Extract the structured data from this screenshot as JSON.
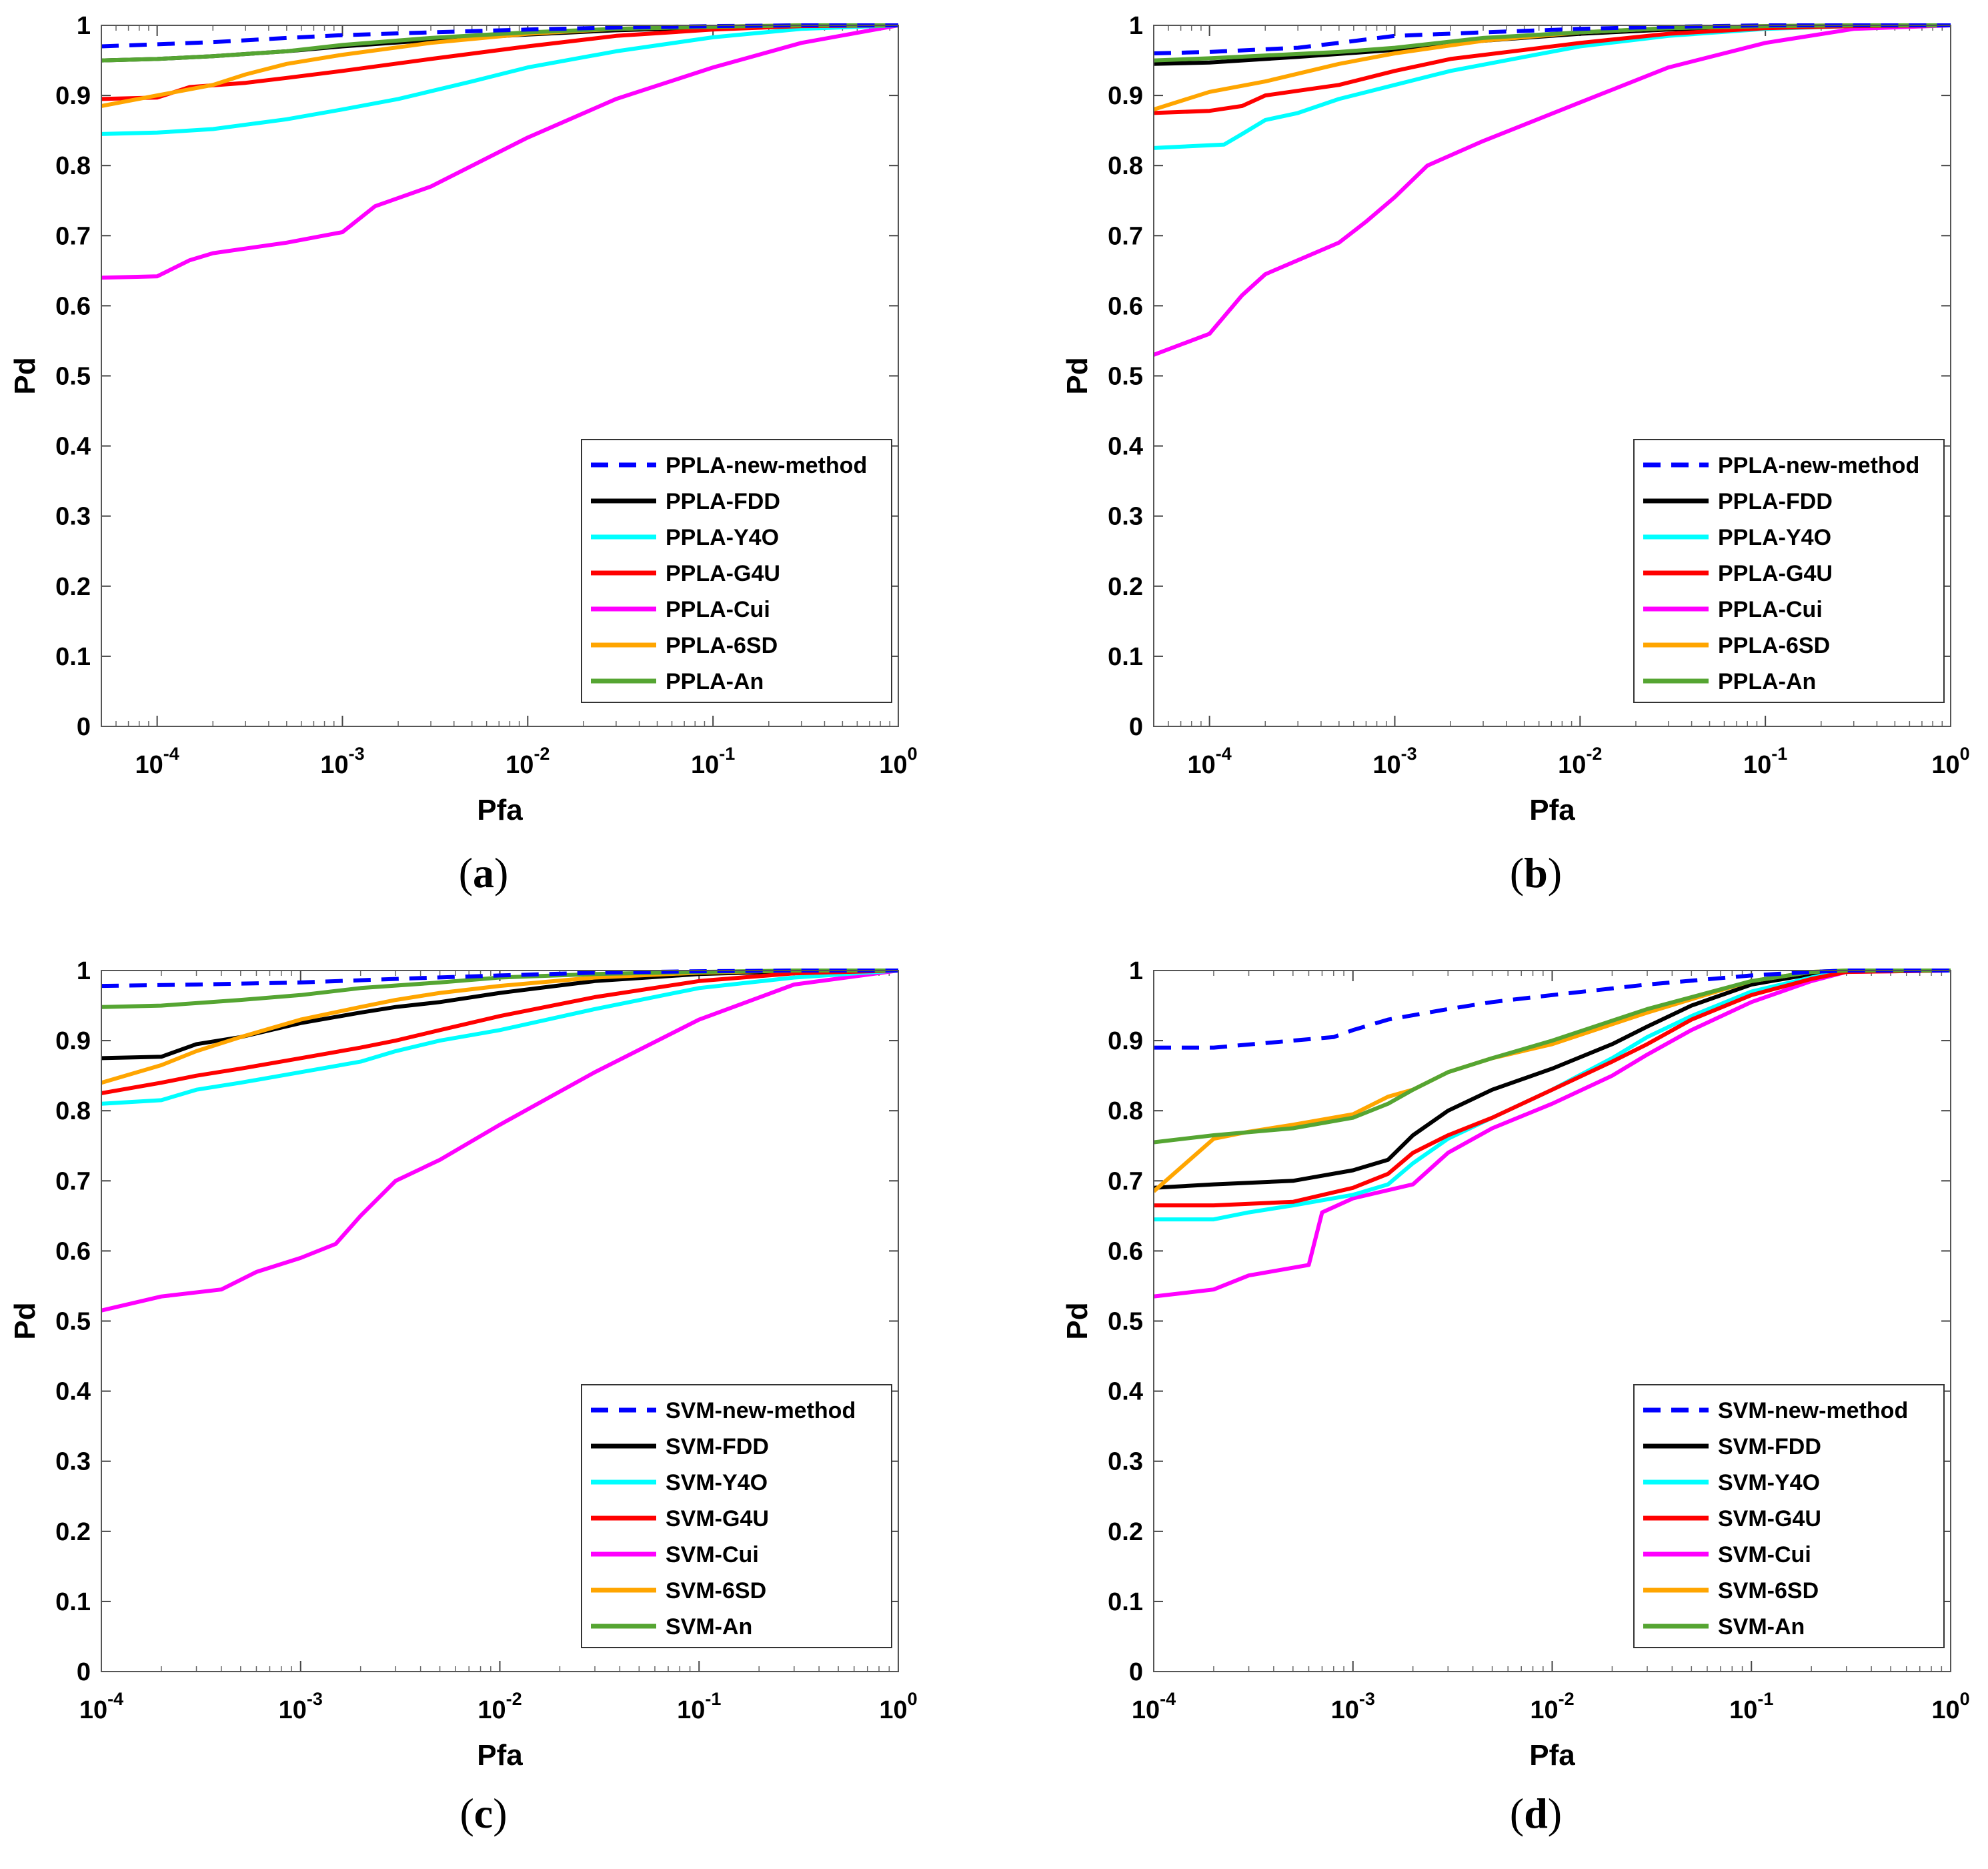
{
  "colors": {
    "new_method": "#0000ff",
    "FDD": "#000000",
    "Y4O": "#00ffff",
    "G4U": "#ff0000",
    "Cui": "#ff00ff",
    "6SD": "#ffa500",
    "An": "#55a532"
  },
  "chart_data": [
    {
      "type": "line",
      "panel": "a",
      "caption_letter": "a",
      "xlabel": "Pfa",
      "ylabel": "Pd",
      "xscale": "log",
      "xlim": [
        5e-05,
        1
      ],
      "ylim": [
        0,
        1
      ],
      "legend_position": "lower-right",
      "series": [
        {
          "name": "PPLA-new-method",
          "color_key": "new_method",
          "dashed": true,
          "x": [
            5e-05,
            0.0001,
            0.0002,
            0.0005,
            0.001,
            0.003,
            0.01,
            0.03,
            0.1,
            0.3,
            1
          ],
          "y": [
            0.97,
            0.973,
            0.976,
            0.982,
            0.986,
            0.99,
            0.994,
            0.997,
            0.999,
            1,
            1
          ]
        },
        {
          "name": "PPLA-FDD",
          "color_key": "FDD",
          "x": [
            5e-05,
            0.0001,
            0.0002,
            0.0005,
            0.001,
            0.003,
            0.01,
            0.03,
            0.1,
            0.3,
            1
          ],
          "y": [
            0.95,
            0.952,
            0.956,
            0.963,
            0.97,
            0.979,
            0.987,
            0.993,
            0.997,
            0.999,
            1
          ]
        },
        {
          "name": "PPLA-Y4O",
          "color_key": "Y4O",
          "x": [
            5e-05,
            0.0001,
            0.0002,
            0.0005,
            0.001,
            0.002,
            0.005,
            0.01,
            0.03,
            0.1,
            0.3,
            1
          ],
          "y": [
            0.845,
            0.847,
            0.852,
            0.866,
            0.88,
            0.895,
            0.92,
            0.94,
            0.963,
            0.983,
            0.995,
            1
          ]
        },
        {
          "name": "PPLA-G4U",
          "color_key": "G4U",
          "x": [
            5e-05,
            0.0001,
            0.00015,
            0.0003,
            0.0005,
            0.001,
            0.003,
            0.01,
            0.03,
            0.1,
            0.3,
            1
          ],
          "y": [
            0.895,
            0.897,
            0.912,
            0.918,
            0.925,
            0.935,
            0.952,
            0.97,
            0.985,
            0.994,
            0.999,
            1
          ]
        },
        {
          "name": "PPLA-Cui",
          "color_key": "Cui",
          "x": [
            5e-05,
            0.0001,
            0.00015,
            0.0002,
            0.0005,
            0.001,
            0.0015,
            0.003,
            0.01,
            0.03,
            0.1,
            0.3,
            1
          ],
          "y": [
            0.64,
            0.642,
            0.665,
            0.675,
            0.69,
            0.705,
            0.742,
            0.77,
            0.84,
            0.895,
            0.94,
            0.975,
            1
          ]
        },
        {
          "name": "PPLA-6SD",
          "color_key": "6SD",
          "x": [
            5e-05,
            0.0001,
            0.0002,
            0.0003,
            0.0005,
            0.001,
            0.003,
            0.01,
            0.03,
            0.1,
            0.3,
            1
          ],
          "y": [
            0.885,
            0.9,
            0.915,
            0.93,
            0.945,
            0.958,
            0.975,
            0.988,
            0.995,
            0.998,
            1,
            1
          ]
        },
        {
          "name": "PPLA-An",
          "color_key": "An",
          "x": [
            5e-05,
            0.0001,
            0.0002,
            0.0005,
            0.001,
            0.003,
            0.01,
            0.03,
            0.1,
            0.3,
            1
          ],
          "y": [
            0.95,
            0.952,
            0.956,
            0.963,
            0.972,
            0.982,
            0.99,
            0.995,
            0.998,
            1,
            1
          ]
        }
      ]
    },
    {
      "type": "line",
      "panel": "b",
      "caption_letter": "b",
      "xlabel": "Pfa",
      "ylabel": "Pd",
      "xscale": "log",
      "xlim": [
        5e-05,
        1
      ],
      "ylim": [
        0,
        1
      ],
      "legend_position": "lower-right",
      "series": [
        {
          "name": "PPLA-new-method",
          "color_key": "new_method",
          "dashed": true,
          "x": [
            5e-05,
            0.0001,
            0.0003,
            0.0005,
            0.001,
            0.003,
            0.01,
            0.03,
            0.1,
            0.3,
            1
          ],
          "y": [
            0.96,
            0.962,
            0.968,
            0.975,
            0.985,
            0.99,
            0.995,
            0.998,
            1,
            1,
            1
          ]
        },
        {
          "name": "PPLA-FDD",
          "color_key": "FDD",
          "x": [
            5e-05,
            0.0001,
            0.0003,
            0.001,
            0.003,
            0.01,
            0.03,
            0.1,
            0.3,
            1
          ],
          "y": [
            0.945,
            0.947,
            0.955,
            0.965,
            0.978,
            0.988,
            0.994,
            0.998,
            1,
            1
          ]
        },
        {
          "name": "PPLA-Y4O",
          "color_key": "Y4O",
          "x": [
            5e-05,
            0.00012,
            0.00015,
            0.0002,
            0.0003,
            0.0005,
            0.001,
            0.002,
            0.005,
            0.01,
            0.03,
            0.1,
            0.3,
            1
          ],
          "y": [
            0.825,
            0.83,
            0.845,
            0.865,
            0.875,
            0.895,
            0.915,
            0.935,
            0.955,
            0.97,
            0.985,
            0.995,
            0.999,
            1
          ]
        },
        {
          "name": "PPLA-G4U",
          "color_key": "G4U",
          "x": [
            5e-05,
            0.0001,
            0.00015,
            0.0002,
            0.0005,
            0.001,
            0.002,
            0.005,
            0.01,
            0.03,
            0.1,
            0.3,
            1
          ],
          "y": [
            0.875,
            0.878,
            0.885,
            0.9,
            0.915,
            0.935,
            0.952,
            0.965,
            0.975,
            0.988,
            0.996,
            0.999,
            1
          ]
        },
        {
          "name": "PPLA-Cui",
          "color_key": "Cui",
          "x": [
            5e-05,
            0.0001,
            0.00015,
            0.0002,
            0.0003,
            0.0005,
            0.0007,
            0.001,
            0.0015,
            0.003,
            0.01,
            0.03,
            0.1,
            0.3,
            1
          ],
          "y": [
            0.53,
            0.56,
            0.615,
            0.645,
            0.665,
            0.69,
            0.72,
            0.755,
            0.8,
            0.835,
            0.89,
            0.94,
            0.975,
            0.995,
            1
          ]
        },
        {
          "name": "PPLA-6SD",
          "color_key": "6SD",
          "x": [
            5e-05,
            0.0001,
            0.0002,
            0.0005,
            0.001,
            0.003,
            0.01,
            0.03,
            0.1,
            0.3,
            1
          ],
          "y": [
            0.88,
            0.905,
            0.92,
            0.945,
            0.96,
            0.978,
            0.99,
            0.996,
            0.999,
            1,
            1
          ]
        },
        {
          "name": "PPLA-An",
          "color_key": "An",
          "x": [
            5e-05,
            0.0001,
            0.0002,
            0.0005,
            0.001,
            0.003,
            0.01,
            0.03,
            0.1,
            0.3,
            1
          ],
          "y": [
            0.95,
            0.953,
            0.957,
            0.962,
            0.968,
            0.982,
            0.99,
            0.996,
            0.999,
            1,
            1
          ]
        }
      ]
    },
    {
      "type": "line",
      "panel": "c",
      "caption_letter": "c",
      "xlabel": "Pfa",
      "ylabel": "Pd",
      "xscale": "log",
      "xlim": [
        0.0001,
        1
      ],
      "ylim": [
        0,
        1
      ],
      "legend_position": "lower-right",
      "series": [
        {
          "name": "SVM-new-method",
          "color_key": "new_method",
          "dashed": true,
          "x": [
            0.0001,
            0.0003,
            0.001,
            0.003,
            0.01,
            0.03,
            0.1,
            0.3,
            1
          ],
          "y": [
            0.978,
            0.98,
            0.983,
            0.988,
            0.993,
            0.997,
            0.999,
            1,
            1
          ]
        },
        {
          "name": "SVM-FDD",
          "color_key": "FDD",
          "x": [
            0.0001,
            0.0002,
            0.0003,
            0.0005,
            0.001,
            0.002,
            0.003,
            0.005,
            0.01,
            0.03,
            0.1,
            0.3,
            1
          ],
          "y": [
            0.875,
            0.877,
            0.895,
            0.905,
            0.925,
            0.94,
            0.948,
            0.955,
            0.968,
            0.985,
            0.995,
            0.999,
            1
          ]
        },
        {
          "name": "SVM-Y4O",
          "color_key": "Y4O",
          "x": [
            0.0001,
            0.0002,
            0.0003,
            0.0005,
            0.001,
            0.002,
            0.003,
            0.005,
            0.01,
            0.03,
            0.1,
            0.3,
            1
          ],
          "y": [
            0.81,
            0.815,
            0.83,
            0.84,
            0.855,
            0.87,
            0.885,
            0.9,
            0.915,
            0.945,
            0.975,
            0.99,
            1
          ]
        },
        {
          "name": "SVM-G4U",
          "color_key": "G4U",
          "x": [
            0.0001,
            0.0002,
            0.0003,
            0.0005,
            0.001,
            0.002,
            0.003,
            0.005,
            0.01,
            0.03,
            0.1,
            0.3,
            1
          ],
          "y": [
            0.825,
            0.84,
            0.85,
            0.86,
            0.875,
            0.89,
            0.9,
            0.915,
            0.935,
            0.962,
            0.985,
            0.996,
            1
          ]
        },
        {
          "name": "SVM-Cui",
          "color_key": "Cui",
          "x": [
            0.0001,
            0.0002,
            0.0004,
            0.0006,
            0.001,
            0.0015,
            0.002,
            0.003,
            0.005,
            0.01,
            0.03,
            0.1,
            0.3,
            1
          ],
          "y": [
            0.515,
            0.535,
            0.545,
            0.57,
            0.59,
            0.61,
            0.65,
            0.7,
            0.73,
            0.78,
            0.855,
            0.93,
            0.98,
            1
          ]
        },
        {
          "name": "SVM-6SD",
          "color_key": "6SD",
          "x": [
            0.0001,
            0.0002,
            0.0003,
            0.0005,
            0.001,
            0.002,
            0.003,
            0.005,
            0.01,
            0.03,
            0.1,
            0.3,
            1
          ],
          "y": [
            0.84,
            0.865,
            0.885,
            0.905,
            0.93,
            0.948,
            0.958,
            0.968,
            0.978,
            0.99,
            0.997,
            1,
            1
          ]
        },
        {
          "name": "SVM-An",
          "color_key": "An",
          "x": [
            0.0001,
            0.0002,
            0.0005,
            0.001,
            0.002,
            0.005,
            0.01,
            0.03,
            0.1,
            0.3,
            1
          ],
          "y": [
            0.948,
            0.95,
            0.958,
            0.965,
            0.975,
            0.983,
            0.99,
            0.995,
            0.998,
            1,
            1
          ]
        }
      ]
    },
    {
      "type": "line",
      "panel": "d",
      "caption_letter": "d",
      "xlabel": "Pfa",
      "ylabel": "Pd",
      "xscale": "log",
      "xlim": [
        0.0001,
        1
      ],
      "ylim": [
        0,
        1
      ],
      "legend_position": "lower-right",
      "series": [
        {
          "name": "SVM-new-method",
          "color_key": "new_method",
          "dashed": true,
          "x": [
            0.0001,
            0.0002,
            0.0005,
            0.0008,
            0.001,
            0.0015,
            0.003,
            0.005,
            0.01,
            0.03,
            0.1,
            0.2,
            0.3,
            1
          ],
          "y": [
            0.89,
            0.89,
            0.9,
            0.905,
            0.915,
            0.93,
            0.945,
            0.955,
            0.965,
            0.98,
            0.993,
            0.998,
            1,
            1
          ]
        },
        {
          "name": "SVM-FDD",
          "color_key": "FDD",
          "x": [
            0.0001,
            0.0002,
            0.0005,
            0.001,
            0.0015,
            0.002,
            0.003,
            0.005,
            0.01,
            0.02,
            0.03,
            0.05,
            0.1,
            0.2,
            0.3,
            1
          ],
          "y": [
            0.69,
            0.695,
            0.7,
            0.715,
            0.73,
            0.765,
            0.8,
            0.83,
            0.86,
            0.895,
            0.92,
            0.95,
            0.98,
            0.995,
            1,
            1
          ]
        },
        {
          "name": "SVM-Y4O",
          "color_key": "Y4O",
          "x": [
            0.0001,
            0.0002,
            0.0003,
            0.0005,
            0.001,
            0.0015,
            0.002,
            0.003,
            0.005,
            0.01,
            0.02,
            0.03,
            0.05,
            0.1,
            0.2,
            0.3,
            1
          ],
          "y": [
            0.645,
            0.645,
            0.655,
            0.665,
            0.68,
            0.695,
            0.725,
            0.76,
            0.79,
            0.83,
            0.875,
            0.905,
            0.935,
            0.97,
            0.99,
            1,
            1
          ]
        },
        {
          "name": "SVM-G4U",
          "color_key": "G4U",
          "x": [
            0.0001,
            0.0002,
            0.0005,
            0.001,
            0.0015,
            0.002,
            0.003,
            0.005,
            0.01,
            0.02,
            0.03,
            0.05,
            0.1,
            0.2,
            0.3,
            1
          ],
          "y": [
            0.665,
            0.665,
            0.67,
            0.69,
            0.71,
            0.74,
            0.765,
            0.79,
            0.83,
            0.87,
            0.895,
            0.93,
            0.965,
            0.988,
            0.998,
            1
          ]
        },
        {
          "name": "SVM-Cui",
          "color_key": "Cui",
          "x": [
            0.0001,
            0.0002,
            0.0003,
            0.0006,
            0.0007,
            0.001,
            0.002,
            0.003,
            0.005,
            0.01,
            0.02,
            0.03,
            0.05,
            0.1,
            0.2,
            0.3,
            1
          ],
          "y": [
            0.535,
            0.545,
            0.565,
            0.58,
            0.655,
            0.675,
            0.695,
            0.74,
            0.775,
            0.81,
            0.85,
            0.88,
            0.915,
            0.955,
            0.985,
            0.998,
            1
          ]
        },
        {
          "name": "SVM-6SD",
          "color_key": "6SD",
          "x": [
            0.0001,
            0.0002,
            0.0003,
            0.0005,
            0.001,
            0.0015,
            0.002,
            0.003,
            0.005,
            0.01,
            0.03,
            0.1,
            0.2,
            0.3,
            1
          ],
          "y": [
            0.685,
            0.76,
            0.77,
            0.78,
            0.795,
            0.82,
            0.83,
            0.855,
            0.875,
            0.895,
            0.94,
            0.985,
            0.998,
            1,
            1
          ]
        },
        {
          "name": "SVM-An",
          "color_key": "An",
          "x": [
            0.0001,
            0.0002,
            0.0005,
            0.001,
            0.0015,
            0.002,
            0.003,
            0.005,
            0.01,
            0.03,
            0.1,
            0.2,
            0.3,
            1
          ],
          "y": [
            0.755,
            0.765,
            0.775,
            0.79,
            0.81,
            0.83,
            0.855,
            0.875,
            0.9,
            0.945,
            0.985,
            0.998,
            1,
            1
          ]
        }
      ]
    }
  ]
}
